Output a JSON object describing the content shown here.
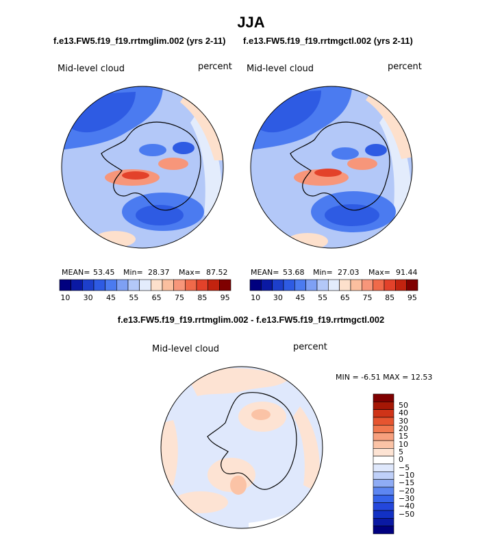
{
  "figure": {
    "title": "JJA",
    "diff_title": "f.e13.FW5.f19_f19.rrtmglim.002 - f.e13.FW5.f19_f19.rrtmgctl.002"
  },
  "panels": [
    {
      "subtitle": "f.e13.FW5.f19_f19.rrtmglim.002 (yrs 2-11)",
      "field_label": "Mid-level cloud",
      "units": "percent",
      "stats": {
        "mean_label": "MEAN=",
        "mean": "53.45",
        "min_label": "Min=",
        "min": "28.37",
        "max_label": "Max=",
        "max": "87.52"
      }
    },
    {
      "subtitle": "f.e13.FW5.f19_f19.rrtmgctl.002 (yrs 2-11)",
      "field_label": "Mid-level cloud",
      "units": "percent",
      "stats": {
        "mean_label": "MEAN=",
        "mean": "53.68",
        "min_label": "Min=",
        "min": "27.03",
        "max_label": "Max=",
        "max": "91.44"
      }
    },
    {
      "field_label": "Mid-level cloud",
      "units": "percent",
      "stats_text": "MIN =  -6.51 MAX =  12.53"
    }
  ],
  "colors": {
    "abs_scale": [
      "#00007f",
      "#0a19a3",
      "#1d3fcb",
      "#2e5be3",
      "#4b7bf0",
      "#7ea0f4",
      "#b3c8f8",
      "#e3ecfc",
      "#fde0cc",
      "#fbbf9f",
      "#f7967a",
      "#f06a4a",
      "#e3422a",
      "#c2230f",
      "#7f0000"
    ],
    "diff_scale": [
      "#00007f",
      "#0a19a3",
      "#1231c4",
      "#2447dc",
      "#3563ea",
      "#5d86f1",
      "#8facf5",
      "#bfd0f9",
      "#dfe8fc",
      "#ffffff",
      "#fde3d3",
      "#fbc3a6",
      "#f7a07e",
      "#f1784f",
      "#e65530",
      "#cf3418",
      "#a51705",
      "#7f0000"
    ],
    "outline": "#000000"
  },
  "colorbars": {
    "abs_labels": [
      "10",
      "30",
      "45",
      "55",
      "65",
      "75",
      "85",
      "95"
    ],
    "diff_labels": [
      "50",
      "40",
      "30",
      "20",
      "15",
      "10",
      "5",
      "0",
      "−5",
      "−10",
      "−15",
      "−20",
      "−30",
      "−40",
      "−50"
    ]
  }
}
